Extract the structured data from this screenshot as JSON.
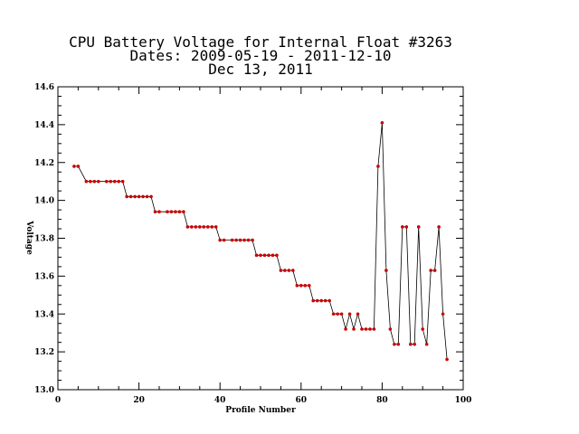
{
  "chart_data": {
    "type": "line",
    "title_lines": [
      "CPU Battery Voltage for Internal Float #3263",
      "Dates:  2009-05-19 -  2011-12-10",
      "Dec 13, 2011"
    ],
    "xlabel": "Profile Number",
    "ylabel": "Voltage",
    "xlim": [
      0,
      100
    ],
    "ylim": [
      13.0,
      14.6
    ],
    "xticks": [
      0,
      20,
      40,
      60,
      80,
      100
    ],
    "xtick_labels": [
      "0",
      "20",
      "40",
      "60",
      "80",
      "100"
    ],
    "yticks": [
      13.0,
      13.2,
      13.4,
      13.6,
      13.8,
      14.0,
      14.2,
      14.4,
      14.6
    ],
    "ytick_labels": [
      "13.0",
      "13.2",
      "13.4",
      "13.6",
      "13.8",
      "14.0",
      "14.2",
      "14.4",
      "14.6"
    ],
    "grid": false,
    "line_color": "#000000",
    "marker_color": "#cc0000",
    "x": [
      4,
      5,
      7,
      8,
      9,
      10,
      12,
      13,
      14,
      15,
      16,
      17,
      18,
      19,
      20,
      21,
      22,
      23,
      24,
      25,
      27,
      28,
      29,
      30,
      31,
      32,
      33,
      34,
      35,
      36,
      37,
      38,
      39,
      40,
      41,
      43,
      44,
      45,
      46,
      47,
      48,
      49,
      50,
      51,
      52,
      53,
      54,
      55,
      56,
      57,
      58,
      59,
      60,
      61,
      62,
      63,
      64,
      65,
      66,
      67,
      68,
      69,
      70,
      71,
      72,
      73,
      74,
      75,
      76,
      77,
      78,
      79,
      80,
      81,
      82,
      83,
      84,
      85,
      86,
      87,
      88,
      89,
      90,
      91,
      92,
      93,
      94,
      95,
      96
    ],
    "y": [
      14.18,
      14.18,
      14.1,
      14.1,
      14.1,
      14.1,
      14.1,
      14.1,
      14.1,
      14.1,
      14.1,
      14.02,
      14.02,
      14.02,
      14.02,
      14.02,
      14.02,
      14.02,
      13.94,
      13.94,
      13.94,
      13.94,
      13.94,
      13.94,
      13.94,
      13.86,
      13.86,
      13.86,
      13.86,
      13.86,
      13.86,
      13.86,
      13.86,
      13.79,
      13.79,
      13.79,
      13.79,
      13.79,
      13.79,
      13.79,
      13.79,
      13.71,
      13.71,
      13.71,
      13.71,
      13.71,
      13.71,
      13.63,
      13.63,
      13.63,
      13.63,
      13.55,
      13.55,
      13.55,
      13.55,
      13.47,
      13.47,
      13.47,
      13.47,
      13.47,
      13.4,
      13.4,
      13.4,
      13.32,
      13.4,
      13.32,
      13.4,
      13.32,
      13.32,
      13.32,
      13.32,
      14.18,
      14.41,
      13.63,
      13.32,
      13.24,
      13.24,
      13.86,
      13.86,
      13.24,
      13.24,
      13.86,
      13.32,
      13.24,
      13.63,
      13.63,
      13.86,
      13.4,
      13.16
    ]
  }
}
